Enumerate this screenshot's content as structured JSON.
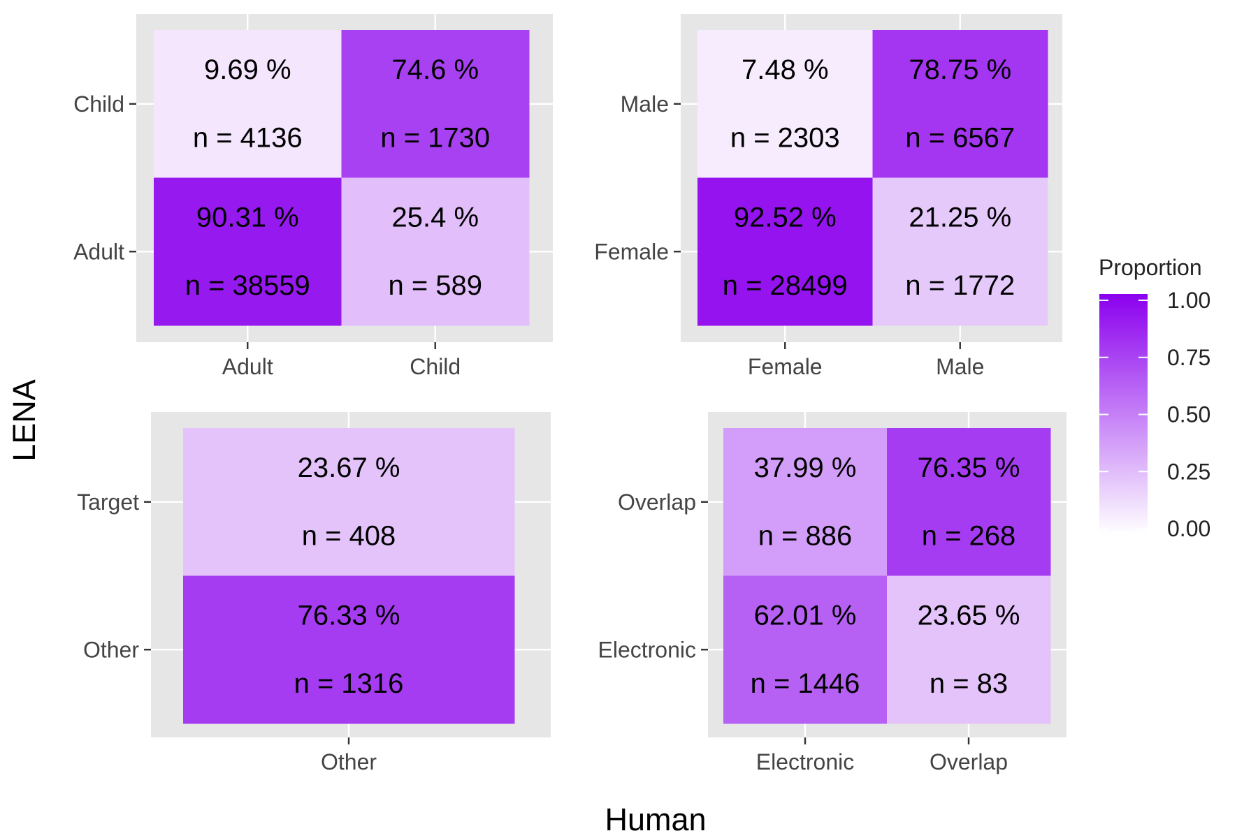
{
  "chart_data": {
    "type": "heatmap",
    "xlabel": "Human",
    "ylabel": "LENA",
    "legend": {
      "title": "Proportion",
      "placement": "right",
      "ticks": [
        "1.00",
        "0.75",
        "0.50",
        "0.25",
        "0.00"
      ],
      "tick_values": [
        1.0,
        0.75,
        0.5,
        0.25,
        0.0
      ],
      "range": [
        0,
        1
      ],
      "low_color": "#ffffff",
      "high_color": "#8b00ee"
    },
    "panels": [
      {
        "x_categories": [
          "Adult",
          "Child"
        ],
        "y_categories": [
          "Child",
          "Adult"
        ],
        "cells": [
          {
            "x": "Adult",
            "y": "Child",
            "proportion": 0.0969,
            "pct_label": "9.69 %",
            "n_label": "n = 4136"
          },
          {
            "x": "Child",
            "y": "Child",
            "proportion": 0.746,
            "pct_label": "74.6 %",
            "n_label": "n = 1730"
          },
          {
            "x": "Adult",
            "y": "Adult",
            "proportion": 0.9031,
            "pct_label": "90.31 %",
            "n_label": "n = 38559"
          },
          {
            "x": "Child",
            "y": "Adult",
            "proportion": 0.254,
            "pct_label": "25.4 %",
            "n_label": "n = 589"
          }
        ]
      },
      {
        "x_categories": [
          "Female",
          "Male"
        ],
        "y_categories": [
          "Male",
          "Female"
        ],
        "cells": [
          {
            "x": "Female",
            "y": "Male",
            "proportion": 0.0748,
            "pct_label": "7.48 %",
            "n_label": "n = 2303"
          },
          {
            "x": "Male",
            "y": "Male",
            "proportion": 0.7875,
            "pct_label": "78.75 %",
            "n_label": "n = 6567"
          },
          {
            "x": "Female",
            "y": "Female",
            "proportion": 0.9252,
            "pct_label": "92.52 %",
            "n_label": "n = 28499"
          },
          {
            "x": "Male",
            "y": "Female",
            "proportion": 0.2125,
            "pct_label": "21.25 %",
            "n_label": "n = 1772"
          }
        ]
      },
      {
        "x_categories": [
          "Other"
        ],
        "y_categories": [
          "Target",
          "Other"
        ],
        "cells": [
          {
            "x": "Other",
            "y": "Target",
            "proportion": 0.2367,
            "pct_label": "23.67 %",
            "n_label": "n = 408"
          },
          {
            "x": "Other",
            "y": "Other",
            "proportion": 0.7633,
            "pct_label": "76.33 %",
            "n_label": "n = 1316"
          }
        ]
      },
      {
        "x_categories": [
          "Electronic",
          "Overlap"
        ],
        "y_categories": [
          "Overlap",
          "Electronic"
        ],
        "cells": [
          {
            "x": "Electronic",
            "y": "Overlap",
            "proportion": 0.3799,
            "pct_label": "37.99 %",
            "n_label": "n = 886"
          },
          {
            "x": "Overlap",
            "y": "Overlap",
            "proportion": 0.7635,
            "pct_label": "76.35 %",
            "n_label": "n = 268"
          },
          {
            "x": "Electronic",
            "y": "Electronic",
            "proportion": 0.6201,
            "pct_label": "62.01 %",
            "n_label": "n = 1446"
          },
          {
            "x": "Overlap",
            "y": "Electronic",
            "proportion": 0.2365,
            "pct_label": "23.65 %",
            "n_label": "n = 83"
          }
        ]
      }
    ]
  }
}
